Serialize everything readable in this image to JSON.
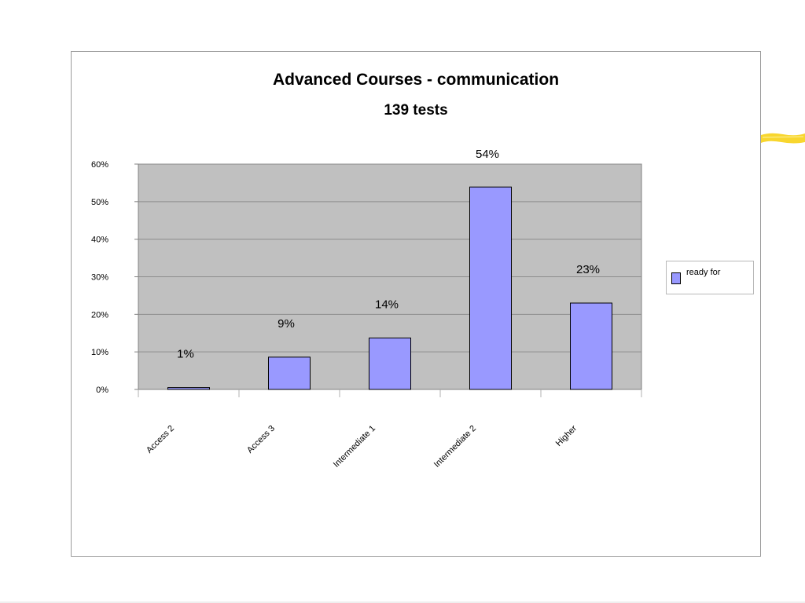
{
  "chart_data": {
    "type": "bar",
    "title": "Advanced Courses - communication",
    "subtitle": "139 tests",
    "categories": [
      "Access 2",
      "Access 3",
      "Intermediate 1",
      "Intermediate 2",
      "Higher"
    ],
    "series": [
      {
        "name": "ready for",
        "values": [
          0.5,
          8.6,
          13.7,
          53.9,
          23.0
        ],
        "data_labels": [
          "1%",
          "9%",
          "14%",
          "54%",
          "23%"
        ]
      }
    ],
    "ylim": [
      0,
      60
    ],
    "yticks": [
      0,
      10,
      20,
      30,
      40,
      50,
      60
    ],
    "ytick_labels": [
      "0%",
      "10%",
      "20%",
      "30%",
      "40%",
      "50%",
      "60%"
    ],
    "xlabel": "",
    "ylabel": "",
    "grid": true,
    "legend_position": "right",
    "colors": {
      "bar_fill": "#9999ff",
      "bar_stroke": "#000000",
      "plot_background": "#c0c0c0",
      "gridline": "#8c8c8c",
      "highlight_mark": "#f7d117"
    }
  }
}
